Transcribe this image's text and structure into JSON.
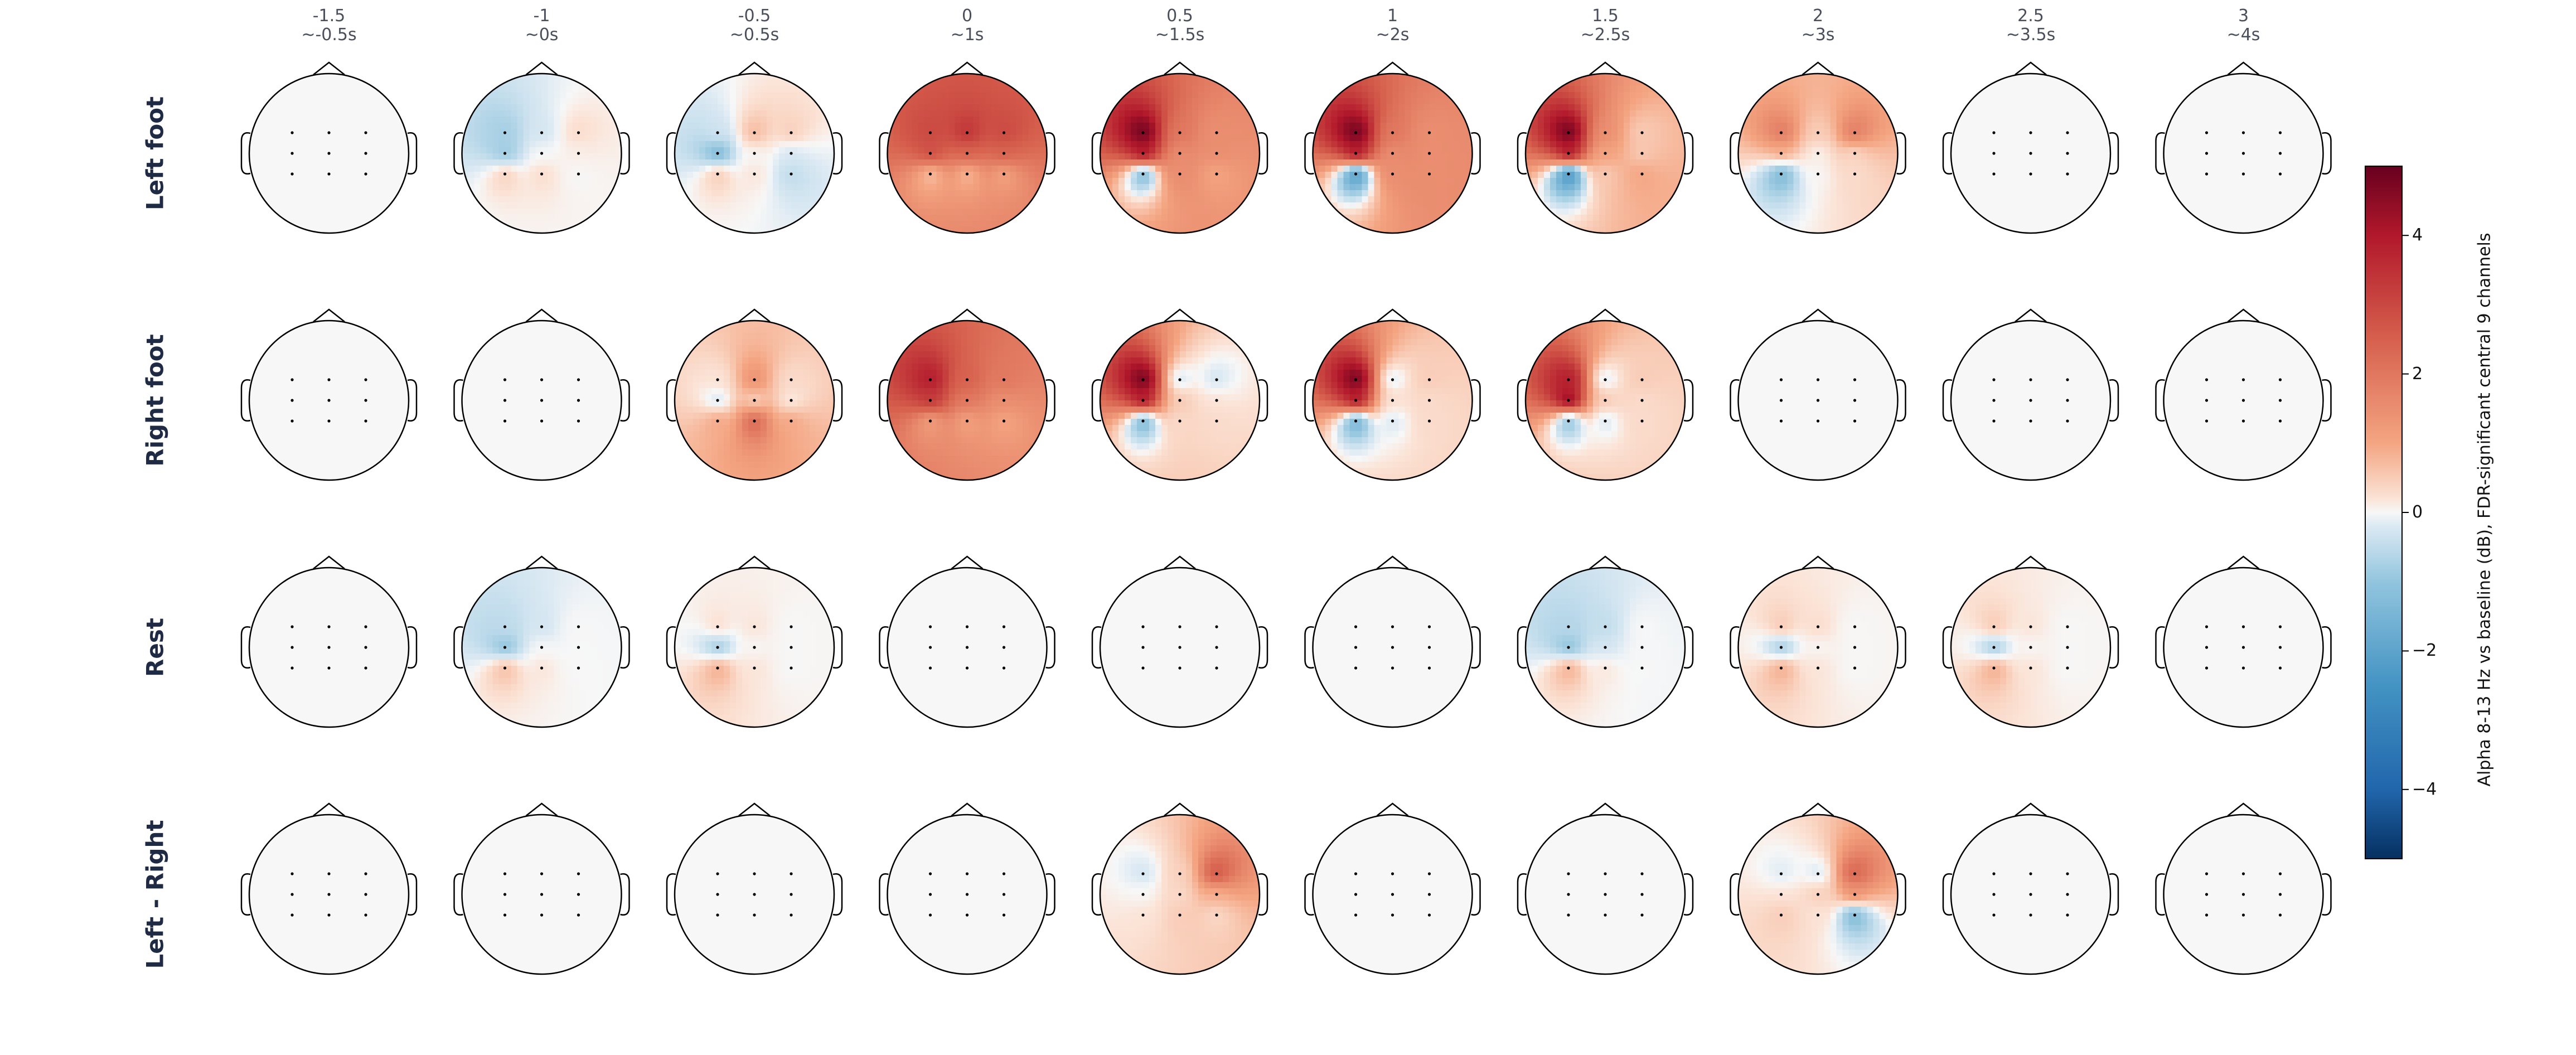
{
  "chart_data": {
    "type": "heatmap",
    "subtype": "scalp-topomap-grid",
    "columns": [
      {
        "label": "-1.5",
        "sublabel": "~-0.5s"
      },
      {
        "label": "-1",
        "sublabel": "~0s"
      },
      {
        "label": "-0.5",
        "sublabel": "~0.5s"
      },
      {
        "label": "0",
        "sublabel": "~1s"
      },
      {
        "label": "0.5",
        "sublabel": "~1.5s"
      },
      {
        "label": "1",
        "sublabel": "~2s"
      },
      {
        "label": "1.5",
        "sublabel": "~2.5s"
      },
      {
        "label": "2",
        "sublabel": "~3s"
      },
      {
        "label": "2.5",
        "sublabel": "~3.5s"
      },
      {
        "label": "3",
        "sublabel": "~4s"
      }
    ],
    "rows": [
      "Left foot",
      "Right foot",
      "Rest",
      "Left - Right"
    ],
    "colorbar": {
      "label": "Alpha 8-13 Hz vs baseline (dB), FDR-significant central 9 channels",
      "range": [
        -5,
        5
      ],
      "ticks": [
        4,
        2,
        0,
        -2,
        -4
      ],
      "tick_labels": [
        "4",
        "2",
        "0",
        "−2",
        "−4"
      ],
      "colormap": "RdBu_r"
    },
    "channel_grid": {
      "columns": 3,
      "rows": 3,
      "note_positions": "L,C,R x F,C,P"
    },
    "values": [
      [
        [
          [
            0,
            0,
            0
          ],
          [
            0,
            0,
            0
          ],
          [
            0,
            0,
            0
          ]
        ],
        [
          [
            -0.8,
            -0.3,
            0.3
          ],
          [
            -1.0,
            0,
            0.1
          ],
          [
            0.5,
            0.3,
            0
          ]
        ],
        [
          [
            -0.3,
            0.8,
            0.5
          ],
          [
            -1.5,
            0,
            -0.3
          ],
          [
            0.6,
            0.2,
            -0.5
          ]
        ],
        [
          [
            3.0,
            3.5,
            3.0
          ],
          [
            3.0,
            2.5,
            2.5
          ],
          [
            0.5,
            0.6,
            1.0
          ]
        ],
        [
          [
            5.0,
            2.0,
            1.5
          ],
          [
            4.5,
            1.5,
            1.5
          ],
          [
            -1.8,
            1.5,
            1.0
          ]
        ],
        [
          [
            5.0,
            2.0,
            1.5
          ],
          [
            4.5,
            1.5,
            1.5
          ],
          [
            -2.8,
            1.5,
            1.5
          ]
        ],
        [
          [
            5.0,
            1.5,
            0.5
          ],
          [
            4.5,
            1.0,
            0.5
          ],
          [
            -3.0,
            0.5,
            1.0
          ]
        ],
        [
          [
            2.0,
            0.5,
            2.0
          ],
          [
            1.0,
            0,
            0.3
          ],
          [
            -1.5,
            0,
            0.3
          ]
        ],
        [
          [
            0,
            0,
            0
          ],
          [
            0,
            0,
            0
          ],
          [
            0,
            0,
            0
          ]
        ],
        [
          [
            0,
            0,
            0
          ],
          [
            0,
            0,
            0
          ],
          [
            0,
            0,
            0
          ]
        ]
      ],
      [
        [
          [
            0,
            0,
            0
          ],
          [
            0,
            0,
            0
          ],
          [
            0,
            0,
            0
          ]
        ],
        [
          [
            0,
            0,
            0
          ],
          [
            0,
            0,
            0
          ],
          [
            0,
            0,
            0
          ]
        ],
        [
          [
            0.2,
            1.5,
            0.3
          ],
          [
            -0.4,
            0.3,
            0
          ],
          [
            1.0,
            2.5,
            1.0
          ]
        ],
        [
          [
            4.0,
            2.5,
            2.0
          ],
          [
            3.5,
            2.0,
            1.5
          ],
          [
            1.0,
            1.0,
            1.0
          ]
        ],
        [
          [
            5.0,
            -0.4,
            -0.3
          ],
          [
            4.5,
            0.5,
            0.2
          ],
          [
            -1.8,
            0.3,
            0.3
          ]
        ],
        [
          [
            5.0,
            -0.3,
            0.5
          ],
          [
            4.5,
            0.2,
            0.3
          ],
          [
            -2.0,
            -0.3,
            0.3
          ]
        ],
        [
          [
            4.0,
            -0.3,
            0.5
          ],
          [
            5.0,
            0.5,
            0.3
          ],
          [
            -1.5,
            -0.3,
            0.3
          ]
        ],
        [
          [
            0,
            0,
            0
          ],
          [
            0,
            0,
            0
          ],
          [
            0,
            0,
            0
          ]
        ],
        [
          [
            0,
            0,
            0
          ],
          [
            0,
            0,
            0
          ],
          [
            0,
            0,
            0
          ]
        ],
        [
          [
            0,
            0,
            0
          ],
          [
            0,
            0,
            0
          ],
          [
            0,
            0,
            0
          ]
        ]
      ],
      [
        [
          [
            0,
            0,
            0
          ],
          [
            0,
            0,
            0
          ],
          [
            0,
            0,
            0
          ]
        ],
        [
          [
            -0.5,
            -0.3,
            0
          ],
          [
            -1.2,
            0,
            0
          ],
          [
            0.8,
            0.2,
            0
          ]
        ],
        [
          [
            0.3,
            0.2,
            0
          ],
          [
            -1.0,
            0,
            0
          ],
          [
            1.0,
            0.2,
            0
          ]
        ],
        [
          [
            0,
            0,
            0
          ],
          [
            0,
            0,
            0
          ],
          [
            0,
            0,
            0
          ]
        ],
        [
          [
            0,
            0,
            0
          ],
          [
            0,
            0,
            0
          ],
          [
            0,
            0,
            0
          ]
        ],
        [
          [
            0,
            0,
            0
          ],
          [
            0,
            0,
            0
          ],
          [
            0,
            0,
            0
          ]
        ],
        [
          [
            -0.6,
            -0.5,
            0
          ],
          [
            -1.2,
            -0.3,
            0
          ],
          [
            1.0,
            0.2,
            0
          ]
        ],
        [
          [
            0.6,
            0.3,
            0
          ],
          [
            -1.0,
            0,
            0
          ],
          [
            1.0,
            0.2,
            0
          ]
        ],
        [
          [
            0.6,
            0.2,
            0
          ],
          [
            -1.0,
            0,
            0
          ],
          [
            1.0,
            0.2,
            0
          ]
        ],
        [
          [
            0,
            0,
            0
          ],
          [
            0,
            0,
            0
          ],
          [
            0,
            0,
            0
          ]
        ]
      ],
      [
        [
          [
            0,
            0,
            0
          ],
          [
            0,
            0,
            0
          ],
          [
            0,
            0,
            0
          ]
        ],
        [
          [
            0,
            0,
            0
          ],
          [
            0,
            0,
            0
          ],
          [
            0,
            0,
            0
          ]
        ],
        [
          [
            0,
            0,
            0
          ],
          [
            0,
            0,
            0
          ],
          [
            0,
            0,
            0
          ]
        ],
        [
          [
            0,
            0,
            0
          ],
          [
            0,
            0,
            0
          ],
          [
            0,
            0,
            0
          ]
        ],
        [
          [
            -0.3,
            0.4,
            2.8
          ],
          [
            0,
            0.3,
            0.8
          ],
          [
            0.2,
            0.5,
            0.3
          ]
        ],
        [
          [
            0,
            0,
            0
          ],
          [
            0,
            0,
            0
          ],
          [
            0,
            0,
            0
          ]
        ],
        [
          [
            0,
            0,
            0
          ],
          [
            0,
            0,
            0
          ],
          [
            0,
            0,
            0
          ]
        ],
        [
          [
            -0.2,
            -0.3,
            2.5
          ],
          [
            0.2,
            0.5,
            1.5
          ],
          [
            0.5,
            0.2,
            -1.5
          ]
        ],
        [
          [
            0,
            0,
            0
          ],
          [
            0,
            0,
            0
          ],
          [
            0,
            0,
            0
          ]
        ],
        [
          [
            0,
            0,
            0
          ],
          [
            0,
            0,
            0
          ],
          [
            0,
            0,
            0
          ]
        ]
      ]
    ]
  }
}
